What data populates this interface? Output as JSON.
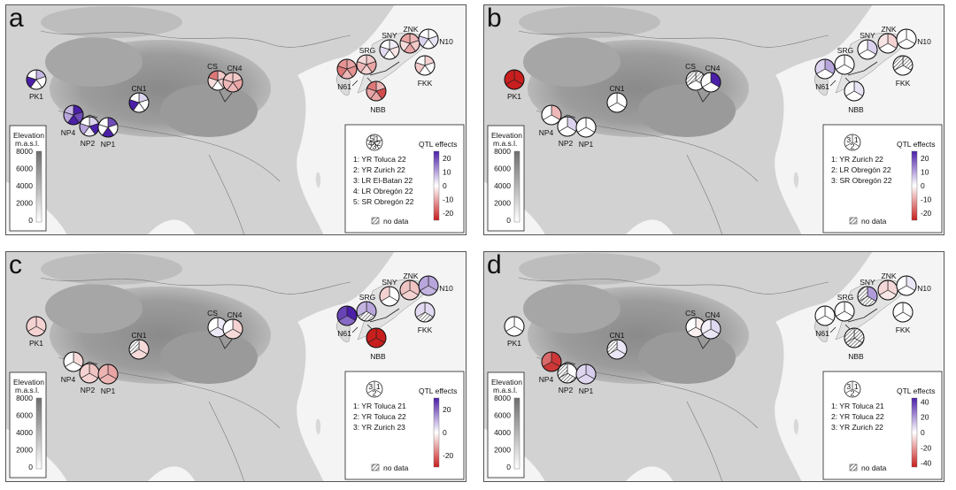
{
  "colors": {
    "positive_max": "#4b1fa8",
    "zero": "#ffffff",
    "negative_max": "#c81e1e",
    "elevation_low": "#ffffff",
    "elevation_high": "#6e6e6e"
  },
  "elevation_legend": {
    "title": "Elevation",
    "unit": "m.a.s.l.",
    "ticks": [
      "8000",
      "6000",
      "4000",
      "2000",
      "0"
    ]
  },
  "legend_common": {
    "qtl_title": "QTL effects",
    "no_data_label": "no data"
  },
  "panels": [
    {
      "letter": "a",
      "pie_key": [
        "1",
        "2",
        "3",
        "4",
        "5"
      ],
      "environments": [
        "1: YR Toluca 22",
        "2: YR Zurich 22",
        "3: LR El-Batan 22",
        "4: LR Obregón 22",
        "5: SR Obregón 22"
      ],
      "scale_ticks": [
        "20",
        "10",
        "0",
        "-10",
        "-20"
      ],
      "scale_max": 25,
      "sites": [
        {
          "name": "PK1",
          "effects": [
            8,
            0,
            0,
            25,
            0
          ]
        },
        {
          "name": "CN1",
          "effects": [
            5,
            0,
            0,
            25,
            0
          ]
        },
        {
          "name": "CS",
          "effects": [
            -6,
            -5,
            0,
            -4,
            -15
          ]
        },
        {
          "name": "CN4",
          "effects": [
            -6,
            -10,
            -8,
            -8,
            -6
          ]
        },
        {
          "name": "NP4",
          "effects": [
            25,
            20,
            25,
            10,
            8
          ]
        },
        {
          "name": "NP2",
          "effects": [
            5,
            25,
            2,
            10,
            0
          ]
        },
        {
          "name": "NP1",
          "effects": [
            20,
            0,
            25,
            0,
            0
          ]
        },
        {
          "name": "SNY",
          "effects": [
            2,
            -3,
            0,
            4,
            0
          ]
        },
        {
          "name": "ZNK",
          "effects": [
            -8,
            -6,
            -10,
            -4,
            -10
          ]
        },
        {
          "name": "N10",
          "effects": [
            0,
            3,
            0,
            5,
            0
          ]
        },
        {
          "name": "SRG",
          "effects": [
            -6,
            -10,
            -5,
            -8,
            -4
          ]
        },
        {
          "name": "N61",
          "effects": [
            -10,
            -12,
            -8,
            -15,
            -12
          ]
        },
        {
          "name": "FKK",
          "effects": [
            -5,
            0,
            0,
            -6,
            0
          ]
        },
        {
          "name": "NBB",
          "effects": [
            -8,
            -20,
            -10,
            -10,
            -15
          ]
        }
      ]
    },
    {
      "letter": "b",
      "pie_key": [
        "1",
        "2",
        "3"
      ],
      "environments": [
        "1: YR Zurich 22",
        "2: LR Obregón 22",
        "3: SR Obregón 22"
      ],
      "scale_ticks": [
        "20",
        "10",
        "0",
        "-10",
        "-20"
      ],
      "scale_max": 25,
      "sites": [
        {
          "name": "PK1",
          "effects": [
            -25,
            -25,
            -25
          ]
        },
        {
          "name": "CN1",
          "effects": [
            0,
            0,
            0
          ]
        },
        {
          "name": "CS",
          "effects": [
            null,
            0,
            null
          ]
        },
        {
          "name": "CN4",
          "effects": [
            25,
            0,
            0
          ]
        },
        {
          "name": "NP4",
          "effects": [
            -8,
            0,
            0
          ]
        },
        {
          "name": "NP2",
          "effects": [
            5,
            0,
            0
          ]
        },
        {
          "name": "NP1",
          "effects": [
            0,
            0,
            0
          ]
        },
        {
          "name": "SNY",
          "effects": [
            5,
            0,
            0
          ]
        },
        {
          "name": "ZNK",
          "effects": [
            -5,
            0,
            -3
          ]
        },
        {
          "name": "N10",
          "effects": [
            0,
            0,
            0
          ]
        },
        {
          "name": "SRG",
          "effects": [
            0,
            0,
            0
          ]
        },
        {
          "name": "N61",
          "effects": [
            10,
            0,
            5
          ]
        },
        {
          "name": "FKK",
          "effects": [
            null,
            0,
            null
          ]
        },
        {
          "name": "NBB",
          "effects": [
            3,
            0,
            0
          ]
        }
      ]
    },
    {
      "letter": "c",
      "pie_key": [
        "1",
        "2",
        "3"
      ],
      "environments": [
        "1: YR Toluca 21",
        "2: YR Toluca 22",
        "3: YR Zurich 23"
      ],
      "scale_ticks": [
        "20",
        "0",
        "-20"
      ],
      "scale_max": 30,
      "sites": [
        {
          "name": "PK1",
          "effects": [
            -6,
            -6,
            -6
          ]
        },
        {
          "name": "CN1",
          "effects": [
            -5,
            -5,
            null
          ]
        },
        {
          "name": "CS",
          "effects": [
            3,
            3,
            0
          ]
        },
        {
          "name": "CN4",
          "effects": [
            -6,
            -5,
            0
          ]
        },
        {
          "name": "NP4",
          "effects": [
            -5,
            0,
            0
          ]
        },
        {
          "name": "NP2",
          "effects": [
            -8,
            -6,
            -6
          ]
        },
        {
          "name": "NP1",
          "effects": [
            -12,
            -10,
            -10
          ]
        },
        {
          "name": "SNY",
          "effects": [
            0,
            0,
            -6
          ]
        },
        {
          "name": "ZNK",
          "effects": [
            -8,
            -6,
            -8
          ]
        },
        {
          "name": "N10",
          "effects": [
            12,
            10,
            12
          ]
        },
        {
          "name": "SRG",
          "effects": [
            12,
            null,
            10
          ]
        },
        {
          "name": "N61",
          "effects": [
            30,
            20,
            25
          ]
        },
        {
          "name": "FKK",
          "effects": [
            5,
            null,
            5
          ]
        },
        {
          "name": "NBB",
          "effects": [
            -30,
            -30,
            -30
          ]
        }
      ]
    },
    {
      "letter": "d",
      "pie_key": [
        "1",
        "2",
        "3"
      ],
      "environments": [
        "1: YR Toluca 21",
        "2: YR Toluca 22",
        "3: YR Zurich 22"
      ],
      "scale_ticks": [
        "40",
        "20",
        "0",
        "-20",
        "-40"
      ],
      "scale_max": 45,
      "sites": [
        {
          "name": "PK1",
          "effects": [
            0,
            0,
            0
          ]
        },
        {
          "name": "CN1",
          "effects": [
            5,
            5,
            null
          ]
        },
        {
          "name": "CS",
          "effects": [
            -3,
            -3,
            0
          ]
        },
        {
          "name": "CN4",
          "effects": [
            8,
            5,
            3
          ]
        },
        {
          "name": "NP4",
          "effects": [
            -40,
            -40,
            -30
          ]
        },
        {
          "name": "NP2",
          "effects": [
            0,
            null,
            null
          ]
        },
        {
          "name": "NP1",
          "effects": [
            10,
            8,
            8
          ]
        },
        {
          "name": "SNY",
          "effects": [
            20,
            null,
            null
          ]
        },
        {
          "name": "ZNK",
          "effects": [
            -8,
            -5,
            -8
          ]
        },
        {
          "name": "N10",
          "effects": [
            5,
            0,
            0
          ]
        },
        {
          "name": "SRG",
          "effects": [
            0,
            0,
            0
          ]
        },
        {
          "name": "N61",
          "effects": [
            0,
            0,
            0
          ]
        },
        {
          "name": "FKK",
          "effects": [
            0,
            0,
            0
          ]
        },
        {
          "name": "NBB",
          "effects": [
            null,
            null,
            null
          ]
        }
      ]
    }
  ]
}
